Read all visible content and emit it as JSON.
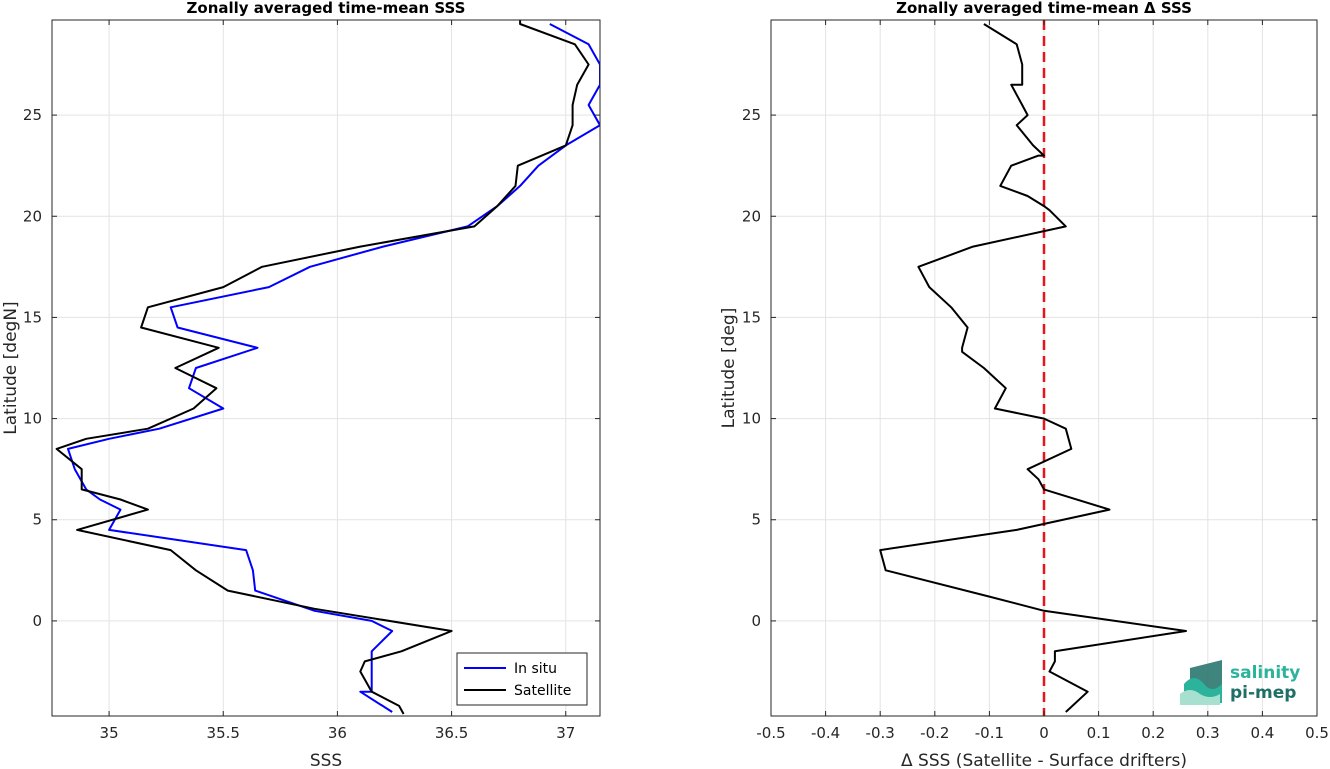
{
  "logo": {
    "line1": "salinity",
    "line2": "pi-mep",
    "colors": [
      "#2bb39b",
      "#1f6f67",
      "#a8e0cf"
    ]
  },
  "chart_data": [
    {
      "type": "line",
      "title": "Zonally averaged time-mean SSS",
      "xlabel": "SSS",
      "ylabel": "Latitude [degN]",
      "xlim": [
        34.75,
        37.15
      ],
      "ylim": [
        -4.7,
        29.7
      ],
      "xticks": [
        35,
        35.5,
        36,
        36.5,
        37
      ],
      "xtick_labels": [
        "35",
        "35.5",
        "36",
        "36.5",
        "37"
      ],
      "yticks": [
        0,
        5,
        10,
        15,
        20,
        25
      ],
      "ytick_labels": [
        "0",
        "5",
        "10",
        "15",
        "20",
        "25"
      ],
      "grid": true,
      "legend_position": "bottom-right",
      "series": [
        {
          "name": "In situ",
          "color": "#0000ff",
          "points": [
            [
              36.93,
              29.5
            ],
            [
              37.1,
              28.5
            ],
            [
              37.15,
              27.5
            ],
            [
              37.15,
              26.5
            ],
            [
              37.1,
              25.5
            ],
            [
              37.15,
              24.5
            ],
            [
              37.0,
              23.5
            ],
            [
              36.88,
              22.5
            ],
            [
              36.8,
              21.5
            ],
            [
              36.7,
              20.5
            ],
            [
              36.57,
              19.5
            ],
            [
              36.2,
              18.5
            ],
            [
              35.88,
              17.5
            ],
            [
              35.7,
              16.5
            ],
            [
              35.27,
              15.5
            ],
            [
              35.3,
              14.5
            ],
            [
              35.65,
              13.5
            ],
            [
              35.38,
              12.5
            ],
            [
              35.35,
              11.5
            ],
            [
              35.5,
              10.5
            ],
            [
              35.22,
              9.5
            ],
            [
              35.0,
              9.0
            ],
            [
              34.82,
              8.5
            ],
            [
              34.85,
              7.5
            ],
            [
              34.9,
              6.5
            ],
            [
              34.96,
              6.0
            ],
            [
              35.05,
              5.5
            ],
            [
              35.0,
              4.5
            ],
            [
              35.6,
              3.5
            ],
            [
              35.63,
              2.5
            ],
            [
              35.64,
              1.5
            ],
            [
              35.9,
              0.5
            ],
            [
              36.15,
              0.0
            ],
            [
              36.24,
              -0.5
            ],
            [
              36.15,
              -1.5
            ],
            [
              36.15,
              -2.5
            ],
            [
              36.15,
              -3.5
            ],
            [
              36.1,
              -3.5
            ],
            [
              36.24,
              -4.5
            ]
          ]
        },
        {
          "name": "Satellite",
          "color": "#000000",
          "points": [
            [
              36.8,
              29.7
            ],
            [
              36.8,
              29.5
            ],
            [
              37.04,
              28.5
            ],
            [
              37.1,
              27.5
            ],
            [
              37.05,
              26.5
            ],
            [
              37.03,
              25.5
            ],
            [
              37.03,
              24.5
            ],
            [
              37.0,
              23.5
            ],
            [
              36.79,
              22.5
            ],
            [
              36.78,
              21.5
            ],
            [
              36.7,
              20.5
            ],
            [
              36.6,
              19.5
            ],
            [
              36.1,
              18.5
            ],
            [
              35.67,
              17.5
            ],
            [
              35.5,
              16.5
            ],
            [
              35.17,
              15.5
            ],
            [
              35.14,
              14.5
            ],
            [
              35.48,
              13.5
            ],
            [
              35.29,
              12.5
            ],
            [
              35.47,
              11.5
            ],
            [
              35.37,
              10.5
            ],
            [
              35.17,
              9.5
            ],
            [
              34.9,
              9.0
            ],
            [
              34.77,
              8.5
            ],
            [
              34.88,
              7.5
            ],
            [
              34.88,
              6.5
            ],
            [
              35.05,
              6.0
            ],
            [
              35.17,
              5.5
            ],
            [
              34.86,
              4.5
            ],
            [
              35.27,
              3.5
            ],
            [
              35.38,
              2.5
            ],
            [
              35.52,
              1.5
            ],
            [
              35.9,
              0.6
            ],
            [
              36.5,
              -0.5
            ],
            [
              36.28,
              -1.5
            ],
            [
              36.12,
              -2.0
            ],
            [
              36.1,
              -2.5
            ],
            [
              36.15,
              -3.5
            ],
            [
              36.27,
              -4.2
            ],
            [
              36.29,
              -4.6
            ]
          ]
        }
      ]
    },
    {
      "type": "line",
      "title": "Zonally averaged time-mean Δ SSS",
      "xlabel": "Δ SSS (Satellite - Surface drifters)",
      "ylabel": "Latitude [deg]",
      "xlim": [
        -0.5,
        0.5
      ],
      "ylim": [
        -4.7,
        29.7
      ],
      "xticks": [
        -0.5,
        -0.4,
        -0.3,
        -0.2,
        -0.1,
        0,
        0.1,
        0.2,
        0.3,
        0.4,
        0.5
      ],
      "xtick_labels": [
        "-0.5",
        "-0.4",
        "-0.3",
        "-0.2",
        "-0.1",
        "0",
        "0.1",
        "0.2",
        "0.3",
        "0.4",
        "0.5"
      ],
      "yticks": [
        0,
        5,
        10,
        15,
        20,
        25
      ],
      "ytick_labels": [
        "0",
        "5",
        "10",
        "15",
        "20",
        "25"
      ],
      "grid": true,
      "reference_line": {
        "x": 0,
        "color": "#e8141c",
        "style": "dashed"
      },
      "series": [
        {
          "name": "",
          "color": "#000000",
          "points": [
            [
              -0.11,
              29.5
            ],
            [
              -0.05,
              28.5
            ],
            [
              -0.04,
              27.5
            ],
            [
              -0.04,
              26.5
            ],
            [
              -0.06,
              26.5
            ],
            [
              -0.04,
              25.5
            ],
            [
              -0.03,
              25.0
            ],
            [
              -0.05,
              24.5
            ],
            [
              -0.02,
              23.5
            ],
            [
              0.0,
              23.0
            ],
            [
              -0.01,
              23.0
            ],
            [
              -0.06,
              22.5
            ],
            [
              -0.08,
              21.5
            ],
            [
              -0.08,
              21.5
            ],
            [
              -0.03,
              21.0
            ],
            [
              0.0,
              20.5
            ],
            [
              0.01,
              20.3
            ],
            [
              0.04,
              19.5
            ],
            [
              -0.13,
              18.5
            ],
            [
              -0.23,
              17.5
            ],
            [
              -0.21,
              16.5
            ],
            [
              -0.17,
              15.5
            ],
            [
              -0.14,
              14.5
            ],
            [
              -0.15,
              13.5
            ],
            [
              -0.15,
              13.3
            ],
            [
              -0.11,
              12.5
            ],
            [
              -0.07,
              11.5
            ],
            [
              -0.09,
              10.5
            ],
            [
              0.0,
              10.0
            ],
            [
              0.04,
              9.5
            ],
            [
              0.05,
              8.5
            ],
            [
              -0.03,
              7.5
            ],
            [
              -0.01,
              7.0
            ],
            [
              0.0,
              6.5
            ],
            [
              0.12,
              5.5
            ],
            [
              -0.05,
              4.5
            ],
            [
              -0.3,
              3.5
            ],
            [
              -0.29,
              2.5
            ],
            [
              -0.1,
              1.2
            ],
            [
              0.0,
              0.5
            ],
            [
              0.26,
              -0.5
            ],
            [
              0.02,
              -1.5
            ],
            [
              0.02,
              -2.0
            ],
            [
              0.01,
              -2.5
            ],
            [
              0.08,
              -3.5
            ],
            [
              0.04,
              -4.5
            ]
          ]
        }
      ]
    }
  ]
}
